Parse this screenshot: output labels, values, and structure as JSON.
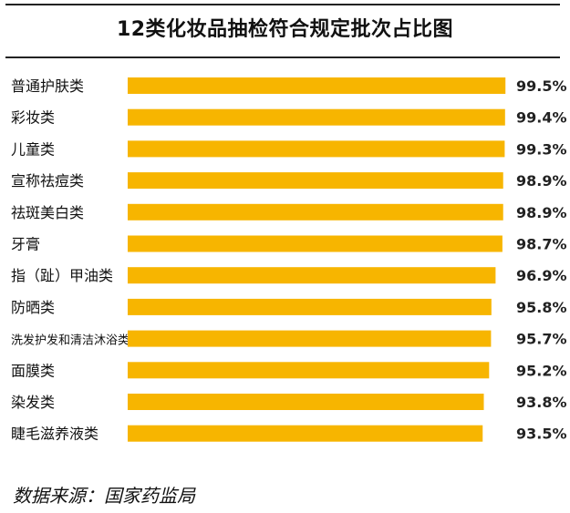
{
  "title": "12类化妆品抽检符合规定批次占比图",
  "source": "数据来源：国家药监局",
  "colors": {
    "bar": "#F7B500",
    "text": "#111111",
    "rule": "#222222"
  },
  "chart_data": {
    "type": "bar",
    "orientation": "horizontal",
    "title": "12类化妆品抽检符合规定批次占比图",
    "xlabel": "",
    "ylabel": "",
    "unit": "%",
    "grid": false,
    "categories": [
      "普通护肤类",
      "彩妆类",
      "儿童类",
      "宣称祛痘类",
      "祛斑美白类",
      "牙膏",
      "指（趾）甲油类",
      "防晒类",
      "洗发护发和清洁沐浴类",
      "面膜类",
      "染发类",
      "睫毛滋养液类"
    ],
    "values": [
      99.5,
      99.4,
      99.3,
      98.9,
      98.9,
      98.7,
      96.9,
      95.8,
      95.7,
      95.2,
      93.8,
      93.5
    ],
    "value_labels": [
      "99.5%",
      "99.4%",
      "99.3%",
      "98.9%",
      "98.9%",
      "98.7%",
      "96.9%",
      "95.8%",
      "95.7%",
      "95.2%",
      "93.8%",
      "93.5%"
    ]
  }
}
